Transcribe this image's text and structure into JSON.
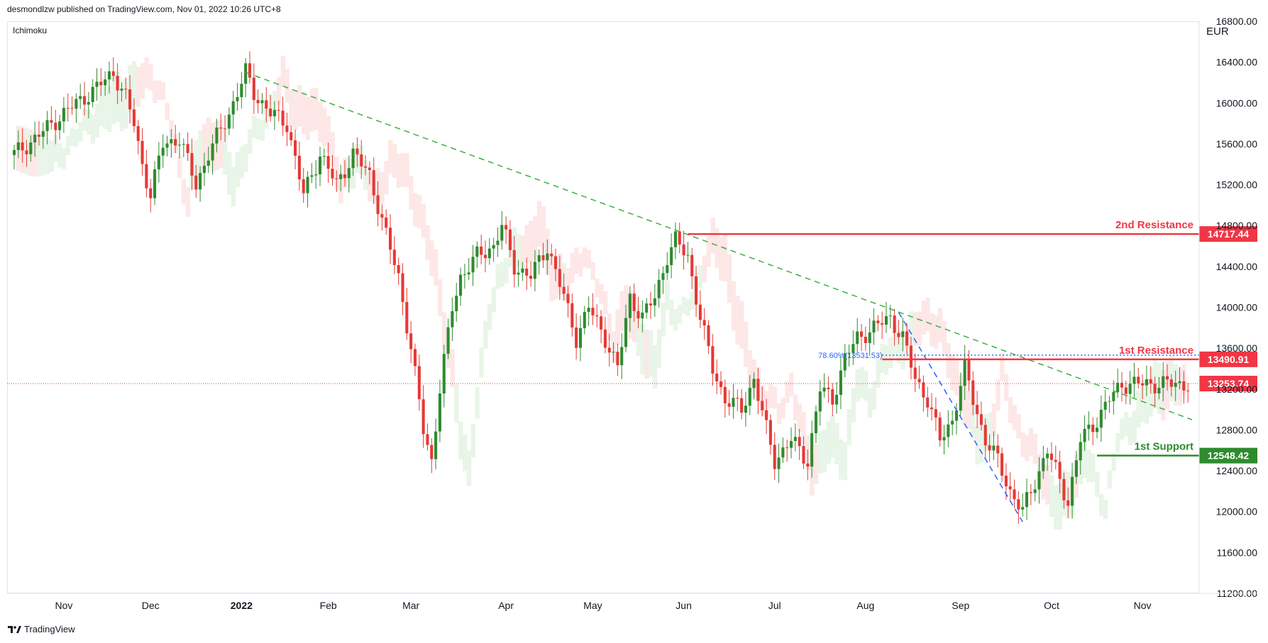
{
  "header": {
    "publisher_line": "desmondlzw published on TradingView.com, Nov 01, 2022 10:26 UTC+8"
  },
  "indicator": {
    "name": "Ichimoku"
  },
  "axis": {
    "currency": "EUR"
  },
  "footer": {
    "brand": "TradingView"
  },
  "colors": {
    "up": "#26a69a",
    "up_candle": "#2e8b2e",
    "down_candle": "#e53935",
    "resistance": "#f23645",
    "support": "#2e8b2e",
    "trendline": "#3cb043",
    "fib": "#2962ff",
    "price_line": "#f23645",
    "cloud_green": "#e6f4e6",
    "cloud_red": "#fde4e4",
    "axis_text": "#131722"
  },
  "chart_data": {
    "type": "candlestick",
    "ylim": [
      11200,
      16800
    ],
    "y_ticks": [
      "16800.00",
      "16400.00",
      "16000.00",
      "15600.00",
      "15200.00",
      "14800.00",
      "14400.00",
      "14000.00",
      "13600.00",
      "13200.00",
      "12800.00",
      "12400.00",
      "12000.00",
      "11600.00",
      "11200.00"
    ],
    "x_ticks": [
      {
        "label": "Nov",
        "bold": false,
        "index": 12
      },
      {
        "label": "Dec",
        "bold": false,
        "index": 33
      },
      {
        "label": "2022",
        "bold": true,
        "index": 55
      },
      {
        "label": "Feb",
        "bold": false,
        "index": 76
      },
      {
        "label": "Mar",
        "bold": false,
        "index": 96
      },
      {
        "label": "Apr",
        "bold": false,
        "index": 119
      },
      {
        "label": "May",
        "bold": false,
        "index": 140
      },
      {
        "label": "Jun",
        "bold": false,
        "index": 162
      },
      {
        "label": "Jul",
        "bold": false,
        "index": 184
      },
      {
        "label": "Aug",
        "bold": false,
        "index": 206
      },
      {
        "label": "Sep",
        "bold": false,
        "index": 229
      },
      {
        "label": "Oct",
        "bold": false,
        "index": 251
      },
      {
        "label": "Nov",
        "bold": false,
        "index": 273
      }
    ],
    "close_anchors": [
      [
        0,
        15500
      ],
      [
        5,
        15650
      ],
      [
        12,
        15900
      ],
      [
        20,
        16150
      ],
      [
        24,
        16300
      ],
      [
        27,
        16050
      ],
      [
        29,
        15800
      ],
      [
        31,
        15400
      ],
      [
        33,
        15100
      ],
      [
        36,
        15600
      ],
      [
        40,
        15650
      ],
      [
        44,
        15200
      ],
      [
        47,
        15500
      ],
      [
        52,
        15900
      ],
      [
        56,
        16300
      ],
      [
        58,
        16100
      ],
      [
        62,
        15900
      ],
      [
        66,
        15800
      ],
      [
        70,
        15100
      ],
      [
        74,
        15500
      ],
      [
        78,
        15200
      ],
      [
        82,
        15500
      ],
      [
        86,
        15300
      ],
      [
        90,
        14700
      ],
      [
        93,
        14300
      ],
      [
        96,
        13600
      ],
      [
        99,
        12800
      ],
      [
        101,
        12500
      ],
      [
        103,
        13200
      ],
      [
        106,
        14000
      ],
      [
        108,
        14300
      ],
      [
        112,
        14500
      ],
      [
        116,
        14600
      ],
      [
        118,
        14800
      ],
      [
        121,
        14400
      ],
      [
        125,
        14300
      ],
      [
        129,
        14600
      ],
      [
        133,
        14100
      ],
      [
        136,
        13700
      ],
      [
        139,
        14000
      ],
      [
        143,
        13700
      ],
      [
        146,
        13400
      ],
      [
        149,
        14100
      ],
      [
        152,
        13900
      ],
      [
        155,
        14100
      ],
      [
        158,
        14500
      ],
      [
        160,
        14650
      ],
      [
        163,
        14500
      ],
      [
        166,
        13900
      ],
      [
        169,
        13400
      ],
      [
        172,
        13100
      ],
      [
        176,
        13000
      ],
      [
        179,
        13300
      ],
      [
        182,
        12800
      ],
      [
        184,
        12500
      ],
      [
        188,
        12700
      ],
      [
        192,
        12500
      ],
      [
        195,
        13200
      ],
      [
        198,
        13100
      ],
      [
        201,
        13500
      ],
      [
        204,
        13700
      ],
      [
        208,
        13800
      ],
      [
        212,
        13900
      ],
      [
        215,
        13700
      ],
      [
        218,
        13300
      ],
      [
        221,
        13100
      ],
      [
        224,
        12700
      ],
      [
        227,
        12900
      ],
      [
        230,
        13400
      ],
      [
        232,
        13100
      ],
      [
        235,
        12700
      ],
      [
        238,
        12500
      ],
      [
        241,
        12200
      ],
      [
        244,
        12000
      ],
      [
        247,
        12300
      ],
      [
        250,
        12600
      ],
      [
        252,
        12400
      ],
      [
        255,
        12100
      ],
      [
        258,
        12700
      ],
      [
        262,
        12900
      ],
      [
        265,
        13100
      ],
      [
        268,
        13250
      ]
    ],
    "series": [
      {
        "name": "",
        "kind": "trendline",
        "style": "dashed",
        "color": "#3cb043",
        "points": [
          [
            56,
            16300
          ],
          [
            285,
            12900
          ]
        ]
      },
      {
        "name": "",
        "kind": "trendline",
        "style": "dashed",
        "color": "#2962ff",
        "points": [
          [
            214,
            13950
          ],
          [
            244,
            11900
          ]
        ]
      }
    ],
    "levels": [
      {
        "name": "2nd Resistance",
        "value": 14717.44,
        "label": "14717.44",
        "color": "#f23645",
        "from_index": 163,
        "kind": "resistance"
      },
      {
        "name": "1st Resistance",
        "value": 13490.91,
        "label": "13490.91",
        "color": "#f23645",
        "from_index": 210,
        "kind": "resistance"
      },
      {
        "name": "",
        "value": 13253.74,
        "label": "13253.74",
        "color": "#f23645",
        "from_index": 0,
        "kind": "last_price"
      },
      {
        "name": "1st Support",
        "value": 12548.42,
        "label": "12548.42",
        "color": "#2e8b2e",
        "from_index": 262,
        "kind": "support"
      }
    ],
    "fib": {
      "label": "78.60%(13531.53)",
      "value": 13531.53,
      "from_index": 210
    },
    "n_bars": 285
  }
}
